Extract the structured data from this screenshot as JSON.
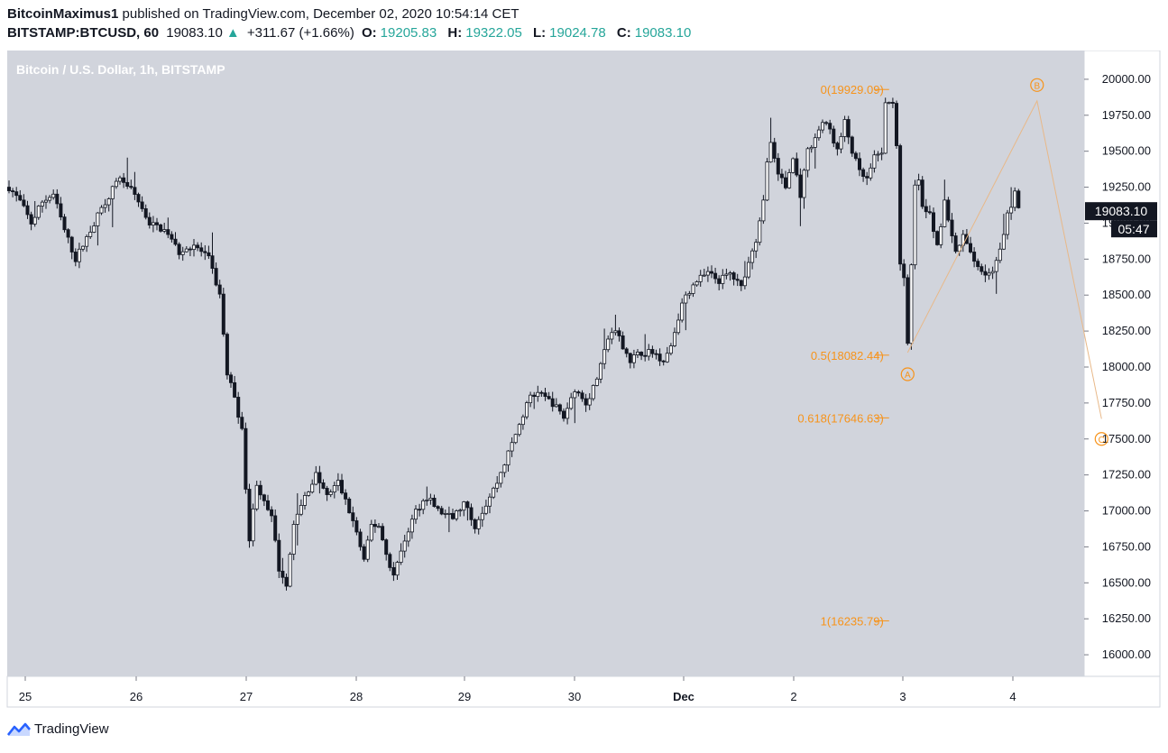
{
  "header": {
    "author": "BitcoinMaximus1",
    "published_text": "published on TradingView.com, December 02, 2020 10:54:14 CET",
    "symbol": "BITSTAMP:BTCUSD, 60",
    "last_price": "19083.10",
    "change_arrow": "▲",
    "change": "+311.67 (+1.66%)",
    "open_label": "O:",
    "open": "19205.83",
    "high_label": "H:",
    "high": "19322.05",
    "low_label": "L:",
    "low": "19024.78",
    "close_label": "C:",
    "close": "19083.10"
  },
  "footer": {
    "brand": "TradingView",
    "logo_icon": "tradingview-logo-icon"
  },
  "colors": {
    "plot_bg": "#d1d4dc",
    "up_fill": "#ffffff",
    "down_fill": "#131722",
    "wick": "#131722",
    "fib": "#f7931a",
    "wave_line": "#e8b888",
    "price_label_bg": "#131722"
  },
  "chart_data": {
    "type": "candlestick",
    "title": "Bitcoin / U.S. Dollar, 1h, BITSTAMP",
    "currency_label": "USD",
    "ylim": [
      15850,
      20200
    ],
    "y_ticks": [
      16000,
      16250,
      16500,
      16750,
      17000,
      17250,
      17500,
      17750,
      18000,
      18250,
      18500,
      18750,
      19000,
      19250,
      19500,
      19750,
      20000
    ],
    "x_tick_labels": [
      "25",
      "26",
      "27",
      "28",
      "29",
      "30",
      "Dec",
      "2",
      "3",
      "4"
    ],
    "current_price": "19083.10",
    "countdown": "05:47",
    "price_path": [
      [
        0,
        19250
      ],
      [
        3,
        19150
      ],
      [
        6,
        19000
      ],
      [
        9,
        19150
      ],
      [
        12,
        19200
      ],
      [
        15,
        18950
      ],
      [
        18,
        18750
      ],
      [
        22,
        18950
      ],
      [
        26,
        19150
      ],
      [
        30,
        19320
      ],
      [
        34,
        19200
      ],
      [
        38,
        19000
      ],
      [
        42,
        18950
      ],
      [
        46,
        18800
      ],
      [
        50,
        18850
      ],
      [
        54,
        18750
      ],
      [
        57,
        18500
      ],
      [
        59,
        17950
      ],
      [
        61,
        17800
      ],
      [
        63,
        17550
      ],
      [
        65,
        16800
      ],
      [
        67,
        17200
      ],
      [
        69,
        17050
      ],
      [
        71,
        16950
      ],
      [
        73,
        16600
      ],
      [
        75,
        16500
      ],
      [
        77,
        16900
      ],
      [
        80,
        17100
      ],
      [
        83,
        17250
      ],
      [
        86,
        17100
      ],
      [
        89,
        17200
      ],
      [
        92,
        17000
      ],
      [
        94,
        16850
      ],
      [
        96,
        16650
      ],
      [
        98,
        16900
      ],
      [
        100,
        16900
      ],
      [
        102,
        16700
      ],
      [
        104,
        16550
      ],
      [
        107,
        16800
      ],
      [
        110,
        17000
      ],
      [
        113,
        17100
      ],
      [
        116,
        17000
      ],
      [
        120,
        16950
      ],
      [
        123,
        17050
      ],
      [
        126,
        16900
      ],
      [
        129,
        17050
      ],
      [
        132,
        17200
      ],
      [
        135,
        17400
      ],
      [
        138,
        17600
      ],
      [
        141,
        17800
      ],
      [
        144,
        17800
      ],
      [
        147,
        17750
      ],
      [
        150,
        17650
      ],
      [
        153,
        17850
      ],
      [
        156,
        17750
      ],
      [
        158,
        17850
      ],
      [
        160,
        18000
      ],
      [
        162,
        18200
      ],
      [
        164,
        18250
      ],
      [
        166,
        18150
      ],
      [
        168,
        18050
      ],
      [
        171,
        18100
      ],
      [
        174,
        18100
      ],
      [
        177,
        18050
      ],
      [
        179,
        18150
      ],
      [
        181,
        18350
      ],
      [
        183,
        18500
      ],
      [
        186,
        18600
      ],
      [
        189,
        18650
      ],
      [
        192,
        18600
      ],
      [
        195,
        18650
      ],
      [
        198,
        18550
      ],
      [
        200,
        18750
      ],
      [
        202,
        18850
      ],
      [
        204,
        19150
      ],
      [
        205,
        19450
      ],
      [
        206,
        19550
      ],
      [
        208,
        19350
      ],
      [
        210,
        19250
      ],
      [
        212,
        19450
      ],
      [
        214,
        19200
      ],
      [
        216,
        19500
      ],
      [
        218,
        19600
      ],
      [
        220,
        19700
      ],
      [
        222,
        19650
      ],
      [
        224,
        19500
      ],
      [
        226,
        19700
      ],
      [
        228,
        19500
      ],
      [
        230,
        19350
      ],
      [
        232,
        19300
      ],
      [
        234,
        19450
      ],
      [
        236,
        19500
      ],
      [
        237,
        19820
      ],
      [
        239,
        19850
      ],
      [
        240,
        19550
      ],
      [
        241,
        18700
      ],
      [
        242,
        18600
      ],
      [
        243,
        18150
      ],
      [
        244,
        18700
      ],
      [
        245,
        19250
      ],
      [
        246,
        19300
      ],
      [
        247,
        19100
      ],
      [
        249,
        19050
      ],
      [
        251,
        18850
      ],
      [
        253,
        19150
      ],
      [
        254,
        19000
      ],
      [
        256,
        18800
      ],
      [
        258,
        18900
      ],
      [
        260,
        18800
      ],
      [
        262,
        18700
      ],
      [
        264,
        18650
      ],
      [
        266,
        18650
      ],
      [
        268,
        18800
      ],
      [
        270,
        19050
      ],
      [
        272,
        19200
      ],
      [
        273,
        19083
      ]
    ],
    "fib_levels": [
      {
        "label": "0(19929.09)",
        "price": 19929.09
      },
      {
        "label": "0.5(18082.44)",
        "price": 18082.44
      },
      {
        "label": "0.618(17646.63)",
        "price": 17646.63
      },
      {
        "label": "1(16235.79)",
        "price": 16235.79
      }
    ],
    "wave_labels": [
      {
        "text": "A",
        "price": 17950
      },
      {
        "text": "B",
        "price": 19960
      },
      {
        "text": "C",
        "price": 17500
      }
    ]
  }
}
